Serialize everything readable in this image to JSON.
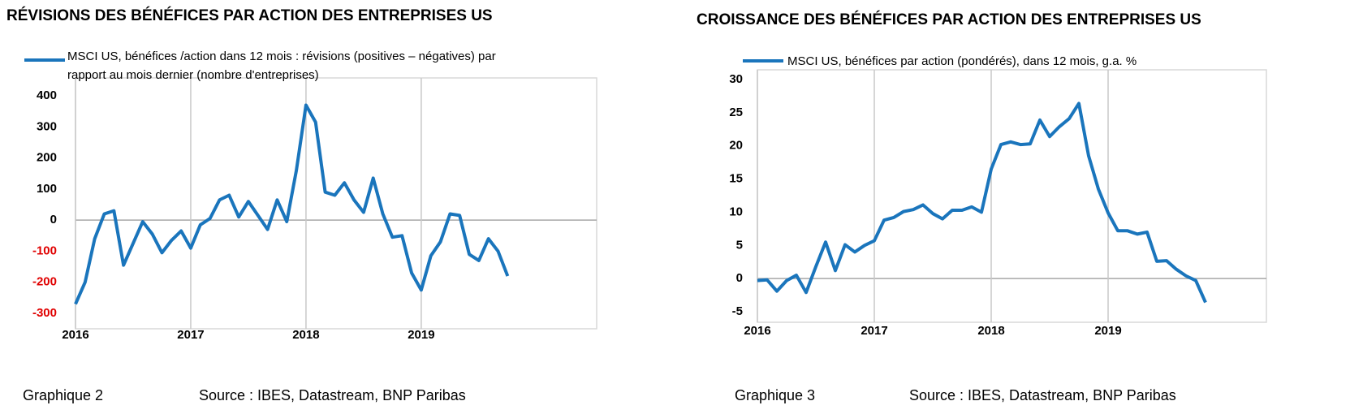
{
  "chart_data": [
    {
      "type": "line",
      "title": "RÉVISIONS DES BÉNÉFICES PAR ACTION DES ENTREPRISES US",
      "caption": "Graphique 2",
      "source": "Source : IBES, Datastream, BNP Paribas",
      "categories": [
        "2016",
        null,
        null,
        null,
        null,
        null,
        null,
        null,
        null,
        null,
        null,
        null,
        "2017",
        null,
        null,
        null,
        null,
        null,
        null,
        null,
        null,
        null,
        null,
        null,
        "2018",
        null,
        null,
        null,
        null,
        null,
        null,
        null,
        null,
        null,
        null,
        null,
        "2019",
        null,
        null,
        null,
        null,
        null,
        null,
        null,
        null,
        null
      ],
      "series": [
        {
          "name": "MSCI US, bénéfices /action dans 12 mois : révisions (positives – négatives) par rapport au mois dernier (nombre d'entreprises)",
          "color": "#1a75bc",
          "values": [
            -270,
            -200,
            -60,
            20,
            30,
            -145,
            -75,
            -5,
            -45,
            -105,
            -65,
            -35,
            -90,
            -15,
            5,
            65,
            80,
            10,
            60,
            15,
            -30,
            65,
            -5,
            160,
            370,
            315,
            90,
            80,
            120,
            65,
            25,
            135,
            20,
            -55,
            -50,
            -170,
            -225,
            -115,
            -70,
            20,
            15,
            -110,
            -130,
            -60,
            -100,
            -180
          ]
        }
      ],
      "ylim": [
        -300,
        400
      ],
      "yticks": [
        -300,
        -200,
        -100,
        0,
        100,
        200,
        300,
        400
      ],
      "negative_tick_color": "#e00000",
      "grid": true
    },
    {
      "type": "line",
      "title": "CROISSANCE DES BÉNÉFICES PAR ACTION DES ENTREPRISES US",
      "caption": "Graphique 3",
      "source": "Source : IBES, Datastream, BNP Paribas",
      "categories": [
        "2016",
        null,
        null,
        null,
        null,
        null,
        null,
        null,
        null,
        null,
        null,
        null,
        "2017",
        null,
        null,
        null,
        null,
        null,
        null,
        null,
        null,
        null,
        null,
        null,
        "2018",
        null,
        null,
        null,
        null,
        null,
        null,
        null,
        null,
        null,
        null,
        null,
        "2019",
        null,
        null,
        null,
        null,
        null,
        null,
        null,
        null,
        null,
        null
      ],
      "series": [
        {
          "name": "MSCI US, bénéfices par action (pondérés), dans 12 mois, g.a. %",
          "color": "#1a75bc",
          "values": [
            -0.3,
            -0.2,
            -1.9,
            -0.3,
            0.5,
            -2.1,
            1.8,
            5.5,
            1.2,
            5.1,
            4,
            5,
            5.7,
            8.8,
            9.2,
            10.1,
            10.4,
            11.1,
            9.8,
            9,
            10.3,
            10.3,
            10.8,
            10,
            16.5,
            20.2,
            20.6,
            20.2,
            20.3,
            23.9,
            21.4,
            22.9,
            24.1,
            26.4,
            18.5,
            13.5,
            9.9,
            7.2,
            7.2,
            6.7,
            7,
            2.6,
            2.7,
            1.4,
            0.4,
            -0.3,
            -3.6
          ]
        }
      ],
      "ylim": [
        -5,
        30
      ],
      "yticks": [
        -5,
        0,
        5,
        10,
        15,
        20,
        25,
        30
      ],
      "grid": true
    }
  ]
}
